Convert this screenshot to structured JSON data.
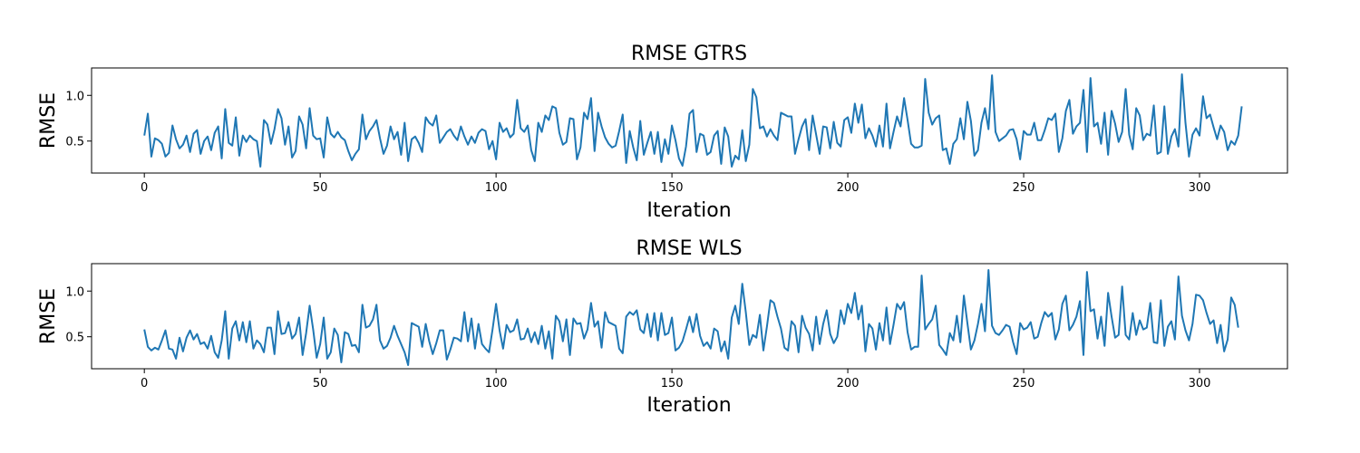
{
  "chart_data": [
    {
      "type": "line",
      "title": "RMSE GTRS",
      "xlabel": "Iteration",
      "ylabel": "RMSE",
      "xlim": [
        -15,
        325
      ],
      "ylim": [
        0.15,
        1.3
      ],
      "xticks": [
        0,
        50,
        100,
        150,
        200,
        250,
        300
      ],
      "yticks": [
        0.5,
        1.0
      ],
      "grid": false,
      "color": "#1f77b4",
      "series": [
        {
          "x_start": 0,
          "x_step": 1,
          "values": [
            0.56,
            0.8,
            0.33,
            0.53,
            0.51,
            0.47,
            0.33,
            0.37,
            0.67,
            0.52,
            0.42,
            0.46,
            0.56,
            0.38,
            0.58,
            0.62,
            0.36,
            0.5,
            0.55,
            0.4,
            0.59,
            0.66,
            0.31,
            0.85,
            0.48,
            0.45,
            0.76,
            0.34,
            0.56,
            0.49,
            0.56,
            0.52,
            0.5,
            0.22,
            0.73,
            0.68,
            0.47,
            0.63,
            0.85,
            0.75,
            0.46,
            0.66,
            0.32,
            0.39,
            0.77,
            0.68,
            0.42,
            0.86,
            0.56,
            0.52,
            0.53,
            0.32,
            0.76,
            0.58,
            0.54,
            0.6,
            0.54,
            0.51,
            0.39,
            0.29,
            0.36,
            0.41,
            0.79,
            0.52,
            0.61,
            0.66,
            0.73,
            0.53,
            0.36,
            0.45,
            0.66,
            0.52,
            0.6,
            0.35,
            0.7,
            0.28,
            0.52,
            0.55,
            0.48,
            0.38,
            0.76,
            0.7,
            0.67,
            0.78,
            0.48,
            0.54,
            0.6,
            0.63,
            0.56,
            0.51,
            0.66,
            0.55,
            0.46,
            0.55,
            0.48,
            0.59,
            0.63,
            0.61,
            0.41,
            0.5,
            0.3,
            0.7,
            0.6,
            0.64,
            0.54,
            0.58,
            0.95,
            0.64,
            0.6,
            0.67,
            0.4,
            0.28,
            0.7,
            0.6,
            0.78,
            0.73,
            0.88,
            0.86,
            0.59,
            0.46,
            0.49,
            0.75,
            0.74,
            0.3,
            0.43,
            0.81,
            0.74,
            0.97,
            0.39,
            0.81,
            0.66,
            0.54,
            0.47,
            0.43,
            0.45,
            0.61,
            0.79,
            0.26,
            0.61,
            0.43,
            0.29,
            0.72,
            0.35,
            0.48,
            0.6,
            0.36,
            0.6,
            0.27,
            0.52,
            0.36,
            0.67,
            0.51,
            0.31,
            0.23,
            0.44,
            0.8,
            0.84,
            0.38,
            0.58,
            0.56,
            0.35,
            0.38,
            0.56,
            0.61,
            0.25,
            0.65,
            0.55,
            0.22,
            0.34,
            0.3,
            0.62,
            0.28,
            0.46,
            1.07,
            0.98,
            0.64,
            0.66,
            0.55,
            0.63,
            0.56,
            0.51,
            0.81,
            0.79,
            0.77,
            0.77,
            0.36,
            0.52,
            0.66,
            0.74,
            0.4,
            0.78,
            0.57,
            0.36,
            0.66,
            0.65,
            0.42,
            0.71,
            0.48,
            0.44,
            0.73,
            0.76,
            0.59,
            0.91,
            0.7,
            0.9,
            0.53,
            0.64,
            0.56,
            0.44,
            0.67,
            0.44,
            0.91,
            0.42,
            0.6,
            0.77,
            0.66,
            0.97,
            0.73,
            0.47,
            0.43,
            0.43,
            0.45,
            1.18,
            0.81,
            0.68,
            0.75,
            0.78,
            0.4,
            0.42,
            0.25,
            0.47,
            0.52,
            0.75,
            0.52,
            0.93,
            0.72,
            0.34,
            0.4,
            0.7,
            0.86,
            0.63,
            1.22,
            0.6,
            0.5,
            0.53,
            0.56,
            0.62,
            0.63,
            0.52,
            0.3,
            0.61,
            0.57,
            0.57,
            0.7,
            0.51,
            0.51,
            0.62,
            0.75,
            0.73,
            0.8,
            0.38,
            0.53,
            0.83,
            0.95,
            0.58,
            0.66,
            0.7,
            1.06,
            0.38,
            1.19,
            0.66,
            0.7,
            0.47,
            0.81,
            0.35,
            0.83,
            0.69,
            0.49,
            0.6,
            1.07,
            0.57,
            0.41,
            0.86,
            0.78,
            0.51,
            0.58,
            0.56,
            0.89,
            0.36,
            0.38,
            0.88,
            0.36,
            0.55,
            0.63,
            0.44,
            1.23,
            0.7,
            0.33,
            0.57,
            0.64,
            0.56,
            0.99,
            0.75,
            0.79,
            0.65,
            0.52,
            0.67,
            0.6,
            0.4,
            0.5,
            0.46,
            0.56,
            0.88
          ]
        }
      ]
    },
    {
      "type": "line",
      "title": "RMSE WLS",
      "xlabel": "Iteration",
      "ylabel": "RMSE",
      "xlim": [
        -15,
        325
      ],
      "ylim": [
        0.15,
        1.3
      ],
      "xticks": [
        0,
        50,
        100,
        150,
        200,
        250,
        300
      ],
      "yticks": [
        0.5,
        1.0
      ],
      "grid": false,
      "color": "#1f77b4",
      "series": [
        {
          "x_start": 0,
          "x_step": 1,
          "values": [
            0.58,
            0.39,
            0.35,
            0.38,
            0.36,
            0.46,
            0.57,
            0.37,
            0.36,
            0.26,
            0.49,
            0.34,
            0.49,
            0.57,
            0.47,
            0.53,
            0.42,
            0.44,
            0.37,
            0.51,
            0.33,
            0.27,
            0.46,
            0.78,
            0.26,
            0.59,
            0.67,
            0.46,
            0.66,
            0.44,
            0.67,
            0.37,
            0.46,
            0.42,
            0.33,
            0.6,
            0.6,
            0.31,
            0.78,
            0.53,
            0.54,
            0.66,
            0.48,
            0.53,
            0.71,
            0.3,
            0.54,
            0.84,
            0.58,
            0.27,
            0.42,
            0.71,
            0.26,
            0.33,
            0.59,
            0.52,
            0.22,
            0.55,
            0.53,
            0.4,
            0.41,
            0.33,
            0.85,
            0.6,
            0.62,
            0.69,
            0.85,
            0.46,
            0.37,
            0.4,
            0.49,
            0.62,
            0.51,
            0.42,
            0.33,
            0.19,
            0.65,
            0.63,
            0.61,
            0.39,
            0.64,
            0.45,
            0.31,
            0.43,
            0.57,
            0.57,
            0.25,
            0.36,
            0.49,
            0.48,
            0.45,
            0.77,
            0.45,
            0.7,
            0.37,
            0.64,
            0.42,
            0.37,
            0.33,
            0.58,
            0.86,
            0.57,
            0.37,
            0.63,
            0.55,
            0.57,
            0.69,
            0.47,
            0.48,
            0.59,
            0.44,
            0.55,
            0.42,
            0.62,
            0.37,
            0.56,
            0.26,
            0.73,
            0.67,
            0.45,
            0.69,
            0.3,
            0.7,
            0.64,
            0.65,
            0.48,
            0.58,
            0.87,
            0.61,
            0.67,
            0.38,
            0.77,
            0.66,
            0.64,
            0.62,
            0.37,
            0.32,
            0.72,
            0.77,
            0.74,
            0.79,
            0.58,
            0.54,
            0.75,
            0.5,
            0.76,
            0.46,
            0.76,
            0.52,
            0.54,
            0.71,
            0.35,
            0.38,
            0.45,
            0.58,
            0.72,
            0.55,
            0.75,
            0.51,
            0.4,
            0.44,
            0.37,
            0.59,
            0.56,
            0.34,
            0.45,
            0.26,
            0.71,
            0.84,
            0.64,
            1.08,
            0.77,
            0.41,
            0.52,
            0.49,
            0.74,
            0.35,
            0.61,
            0.9,
            0.87,
            0.72,
            0.59,
            0.38,
            0.35,
            0.67,
            0.62,
            0.33,
            0.73,
            0.6,
            0.53,
            0.35,
            0.72,
            0.42,
            0.64,
            0.79,
            0.53,
            0.43,
            0.5,
            0.79,
            0.64,
            0.86,
            0.76,
            0.98,
            0.69,
            0.84,
            0.34,
            0.64,
            0.59,
            0.36,
            0.65,
            0.46,
            0.82,
            0.42,
            0.63,
            0.86,
            0.8,
            0.88,
            0.55,
            0.36,
            0.39,
            0.39,
            1.17,
            0.58,
            0.64,
            0.69,
            0.84,
            0.41,
            0.36,
            0.3,
            0.54,
            0.46,
            0.73,
            0.44,
            0.95,
            0.65,
            0.36,
            0.46,
            0.64,
            0.86,
            0.56,
            1.23,
            0.62,
            0.54,
            0.52,
            0.57,
            0.63,
            0.61,
            0.44,
            0.31,
            0.65,
            0.58,
            0.6,
            0.66,
            0.48,
            0.5,
            0.65,
            0.77,
            0.72,
            0.76,
            0.47,
            0.58,
            0.86,
            0.95,
            0.57,
            0.63,
            0.72,
            0.89,
            0.3,
            1.21,
            0.78,
            0.8,
            0.48,
            0.72,
            0.4,
            0.98,
            0.72,
            0.49,
            0.52,
            1.05,
            0.52,
            0.47,
            0.76,
            0.52,
            0.68,
            0.58,
            0.6,
            0.87,
            0.44,
            0.43,
            0.9,
            0.4,
            0.61,
            0.67,
            0.47,
            1.16,
            0.73,
            0.57,
            0.46,
            0.64,
            0.96,
            0.95,
            0.9,
            0.76,
            0.64,
            0.68,
            0.43,
            0.63,
            0.34,
            0.47,
            0.93,
            0.85,
            0.6
          ]
        }
      ]
    }
  ]
}
